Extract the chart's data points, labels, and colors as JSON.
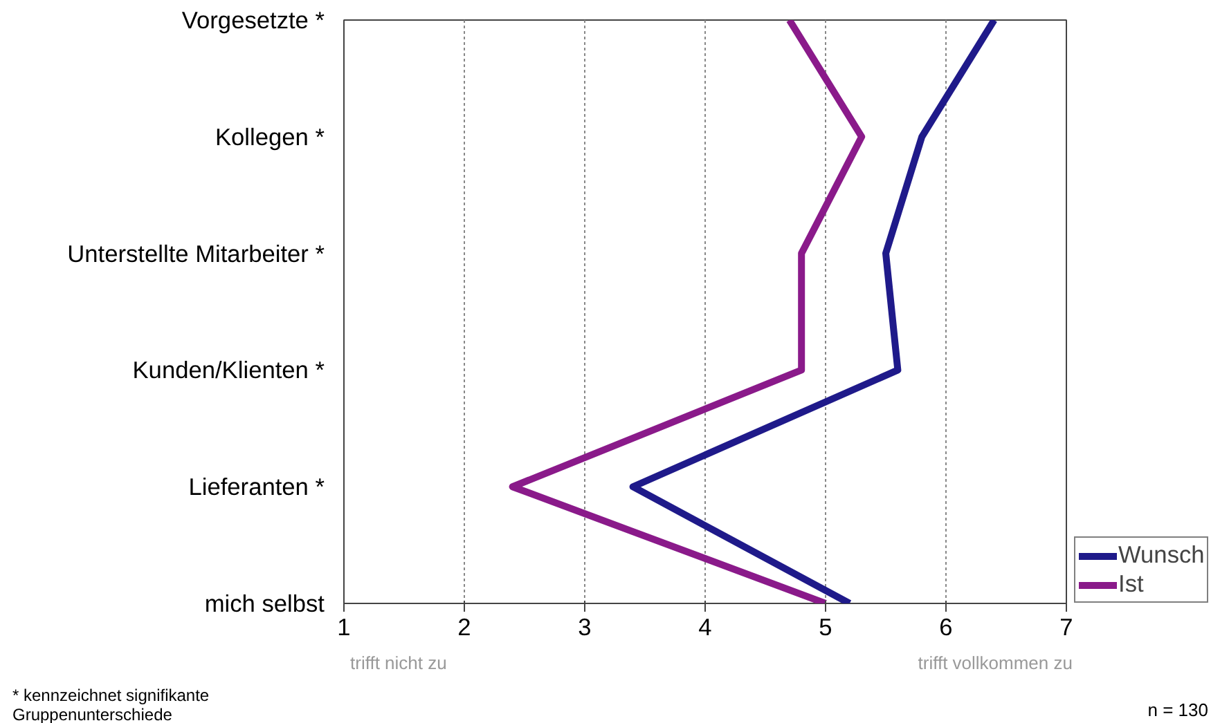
{
  "chart_data": {
    "type": "line",
    "orientation": "horizontal",
    "categories": [
      "Vorgesetzte *",
      "Kollegen *",
      "Unterstellte Mitarbeiter *",
      "Kunden/Klienten *",
      "Lieferanten *",
      "mich selbst"
    ],
    "series": [
      {
        "name": "Wunsch",
        "color": "#1f1a8a",
        "values": [
          6.4,
          5.8,
          5.5,
          5.6,
          3.4,
          5.2
        ]
      },
      {
        "name": "Ist",
        "color": "#8a1a8a",
        "values": [
          4.7,
          5.3,
          4.8,
          4.8,
          2.4,
          5.0
        ]
      }
    ],
    "xlim": [
      1,
      7
    ],
    "xticks": [
      1,
      2,
      3,
      4,
      5,
      6,
      7
    ],
    "grid": "x",
    "legend": "bottom right",
    "line_style": "solid",
    "annotations": [
      "trifft nicht zu",
      "trifft vollkommen zu",
      "* kennzeichnet signifikante\nGruppenunterschiede",
      "n = 130"
    ]
  }
}
